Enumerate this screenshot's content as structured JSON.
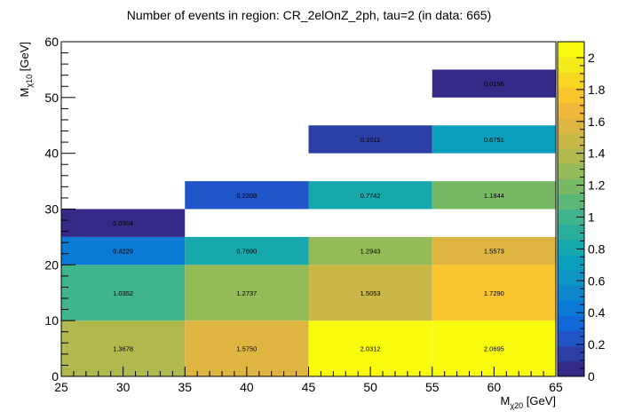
{
  "chart_data": {
    "type": "heatmap",
    "title": "Number of events in region: CR_2elOnZ_2ph, tau=2 (in data: 665)",
    "xlabel": "M",
    "xlabel_sub": "χ20",
    "xlabel_unit": " [GeV]",
    "ylabel": "M",
    "ylabel_sub": "χ10",
    "ylabel_unit": " [GeV]",
    "xlim": [
      25,
      65
    ],
    "ylim": [
      0,
      60
    ],
    "zlim": [
      0,
      2.1
    ],
    "x_ticks": [
      "25",
      "30",
      "35",
      "40",
      "45",
      "50",
      "55",
      "60",
      "65"
    ],
    "y_ticks": [
      "0",
      "10",
      "20",
      "30",
      "40",
      "50",
      "60"
    ],
    "z_ticks": [
      "0",
      "0.2",
      "0.4",
      "0.6",
      "0.8",
      "1",
      "1.2",
      "1.4",
      "1.6",
      "1.8",
      "2"
    ],
    "palette": [
      "#352a87",
      "#2c3fa6",
      "#1f55c6",
      "#1068d9",
      "#0b79d6",
      "#0f87cf",
      "#0f94c6",
      "#0a9fbc",
      "#16a8ad",
      "#29ae9c",
      "#40b48a",
      "#5bb878",
      "#78b966",
      "#95ba58",
      "#b0b94e",
      "#c9b747",
      "#deb541",
      "#efb839",
      "#f8c52f",
      "#f8d723",
      "#f4e91a",
      "#f9fb0e"
    ],
    "cells": [
      {
        "x": [
          25,
          35
        ],
        "y": [
          0,
          10
        ],
        "value": 1.3678,
        "label": "1.3678"
      },
      {
        "x": [
          35,
          45
        ],
        "y": [
          0,
          10
        ],
        "value": 1.575,
        "label": "1.5750"
      },
      {
        "x": [
          45,
          55
        ],
        "y": [
          0,
          10
        ],
        "value": 2.0312,
        "label": "2.0312"
      },
      {
        "x": [
          55,
          65
        ],
        "y": [
          0,
          10
        ],
        "value": 2.0695,
        "label": "2.0695"
      },
      {
        "x": [
          25,
          35
        ],
        "y": [
          10,
          20
        ],
        "value": 1.0352,
        "label": "1.0352"
      },
      {
        "x": [
          35,
          45
        ],
        "y": [
          10,
          20
        ],
        "value": 1.2737,
        "label": "1.2737"
      },
      {
        "x": [
          45,
          55
        ],
        "y": [
          10,
          20
        ],
        "value": 1.5053,
        "label": "1.5053"
      },
      {
        "x": [
          55,
          65
        ],
        "y": [
          10,
          20
        ],
        "value": 1.729,
        "label": "1.7290"
      },
      {
        "x": [
          25,
          35
        ],
        "y": [
          20,
          25
        ],
        "value": 0.4229,
        "label": "0.4229"
      },
      {
        "x": [
          35,
          45
        ],
        "y": [
          20,
          25
        ],
        "value": 0.769,
        "label": "0.7690"
      },
      {
        "x": [
          45,
          55
        ],
        "y": [
          20,
          25
        ],
        "value": 1.2943,
        "label": "1.2943"
      },
      {
        "x": [
          55,
          65
        ],
        "y": [
          20,
          25
        ],
        "value": 1.5573,
        "label": "1.5573"
      },
      {
        "x": [
          25,
          35
        ],
        "y": [
          25,
          30
        ],
        "value": 0.0304,
        "label": "0.0304"
      },
      {
        "x": [
          35,
          45
        ],
        "y": [
          30,
          35
        ],
        "value": 0.2208,
        "label": "0.2208"
      },
      {
        "x": [
          45,
          55
        ],
        "y": [
          30,
          35
        ],
        "value": 0.7742,
        "label": "0.7742"
      },
      {
        "x": [
          55,
          65
        ],
        "y": [
          30,
          35
        ],
        "value": 1.1844,
        "label": "1.1844"
      },
      {
        "x": [
          45,
          55
        ],
        "y": [
          40,
          45
        ],
        "value": 0.1011,
        "label": "0.1011"
      },
      {
        "x": [
          55,
          65
        ],
        "y": [
          40,
          45
        ],
        "value": 0.6751,
        "label": "0.6751"
      },
      {
        "x": [
          55,
          65
        ],
        "y": [
          50,
          55
        ],
        "value": 0.0196,
        "label": "0.0196"
      }
    ]
  }
}
